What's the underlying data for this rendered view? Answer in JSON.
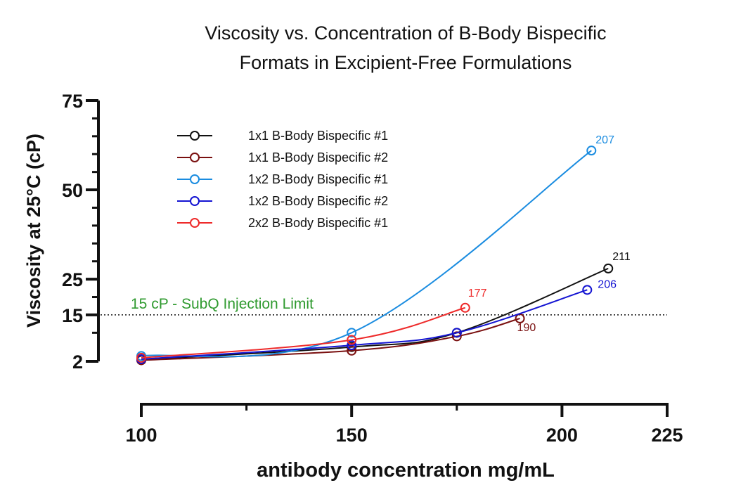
{
  "chart_data": {
    "type": "line",
    "title_lines": [
      "Viscosity vs. Concentration of B-Body Bispecific",
      "Formats in Excipient-Free Formulations"
    ],
    "xlabel": "antibody concentration mg/mL",
    "ylabel": "Viscosity at 25°C (cP)",
    "xlim": [
      100,
      225
    ],
    "ylim": [
      2,
      75
    ],
    "x_ticks": [
      100,
      150,
      200,
      225
    ],
    "x_minor_ticks": [
      125,
      175
    ],
    "y_ticks": [
      2,
      15,
      25,
      50,
      75
    ],
    "y_minor_ticks": [
      10,
      20,
      30,
      35,
      40,
      45,
      55,
      60,
      65,
      70
    ],
    "legend_position": "top-left",
    "series": [
      {
        "name": "1x1 B-Body Bispecific #1",
        "color": "#111111",
        "x": [
          100,
          150,
          175,
          211
        ],
        "y": [
          2.5,
          6,
          10,
          28
        ],
        "end_label": "211"
      },
      {
        "name": "1x1 B-Body Bispecific #2",
        "color": "#7a1010",
        "x": [
          100,
          150,
          175,
          190
        ],
        "y": [
          2.3,
          5,
          9,
          14
        ],
        "end_label": "190"
      },
      {
        "name": "1x2 B-Body Bispecific #1",
        "color": "#1a8ce0",
        "x": [
          100,
          150,
          207
        ],
        "y": [
          3.5,
          10,
          61
        ],
        "end_label": "207"
      },
      {
        "name": "1x2 B-Body Bispecific #2",
        "color": "#1414d2",
        "x": [
          100,
          150,
          175,
          206
        ],
        "y": [
          2.6,
          6.5,
          10,
          22
        ],
        "end_label": "206"
      },
      {
        "name": "2x2 B-Body Bispecific #1",
        "color": "#ee2a2a",
        "x": [
          100,
          150,
          177
        ],
        "y": [
          3,
          8,
          17
        ],
        "end_label": "177"
      }
    ],
    "reference_line": {
      "y": 15,
      "label": "15 cP - SubQ Injection Limit",
      "color": "#2f9a2f"
    }
  }
}
